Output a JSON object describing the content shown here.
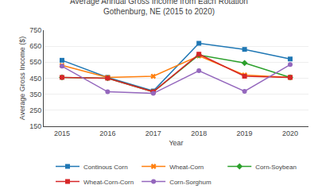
{
  "chart_data": {
    "type": "line",
    "title": "Average Annual Gross Income from Each Rotation",
    "subtitle": "Gothenburg, NE (2015 to 2020)",
    "x_label": "Year",
    "y_label": "Average Gross Income ($)",
    "x": [
      2015,
      2016,
      2017,
      2018,
      2019,
      2020
    ],
    "xlim": [
      2014.6,
      2020.4
    ],
    "xticks": [
      2015,
      2016,
      2017,
      2018,
      2019,
      2020
    ],
    "ylim": [
      150,
      750
    ],
    "yticks": [
      150,
      250,
      350,
      450,
      550,
      650,
      750
    ],
    "grid": true,
    "legend": "bottom",
    "series": [
      {
        "name": "Continous Corn",
        "marker": "square",
        "line_style": "solid",
        "values": [
          562,
          455,
          370,
          668,
          630,
          570
        ]
      },
      {
        "name": "Wheat-Corn",
        "marker": "x",
        "line_style": "solid",
        "values": [
          530,
          455,
          462,
          590,
          470,
          455
        ]
      },
      {
        "name": "Corn-Soybean",
        "marker": "diamond",
        "line_style": "solid",
        "values": [
          455,
          450,
          365,
          595,
          545,
          455
        ]
      },
      {
        "name": "Wheat-Corn-Corn",
        "marker": "square",
        "line_style": "solid",
        "values": [
          455,
          450,
          365,
          600,
          462,
          455
        ]
      },
      {
        "name": "Corn-Sorghum",
        "marker": "circle",
        "line_style": "solid",
        "values": [
          525,
          365,
          355,
          497,
          368,
          535
        ]
      }
    ]
  }
}
